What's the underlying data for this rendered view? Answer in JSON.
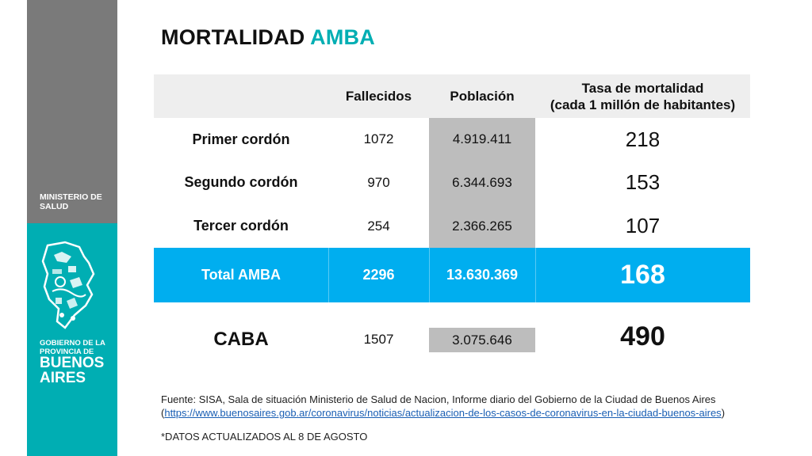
{
  "sidebar": {
    "ministerio": "MINISTERIO DE SALUD",
    "gobierno": "GOBIERNO DE LA PROVINCIA DE",
    "buenos_aires": "BUENOS AIRES",
    "colors": {
      "gray": "#7a7a7a",
      "teal": "#00aeb3"
    },
    "logo_icon": "province-map-icon"
  },
  "title": {
    "main": "MORTALIDAD",
    "accent": "AMBA",
    "accent_color": "#00aeb3"
  },
  "table": {
    "headers": {
      "col1": "",
      "col2": "Fallecidos",
      "col3": "Población",
      "col4_line1": "Tasa de mortalidad",
      "col4_line2": "(cada 1 millón de habitantes)"
    },
    "rows": [
      {
        "label": "Primer cordón",
        "fallecidos": "1072",
        "poblacion": "4.919.411",
        "tasa": "218"
      },
      {
        "label": "Segundo cordón",
        "fallecidos": "970",
        "poblacion": "6.344.693",
        "tasa": "153"
      },
      {
        "label": "Tercer cordón",
        "fallecidos": "254",
        "poblacion": "2.366.265",
        "tasa": "107"
      }
    ],
    "total": {
      "label": "Total AMBA",
      "fallecidos": "2296",
      "poblacion": "13.630.369",
      "tasa": "168",
      "color": "#00aeef"
    },
    "caba": {
      "label": "CABA",
      "fallecidos": "1507",
      "poblacion": "3.075.646",
      "tasa": "490"
    }
  },
  "footer": {
    "source_text": "Fuente: SISA, Sala de situación Ministerio de Salud de Nacion, Informe diario del Gobierno de la Ciudad de Buenos Aires",
    "source_open": "(",
    "source_link": "https://www.buenosaires.gob.ar/coronavirus/noticias/actualizacion-de-los-casos-de-coronavirus-en-la-ciudad-buenos-aires",
    "source_close": ")",
    "note": "*DATOS ACTUALIZADOS AL 8 DE AGOSTO"
  }
}
